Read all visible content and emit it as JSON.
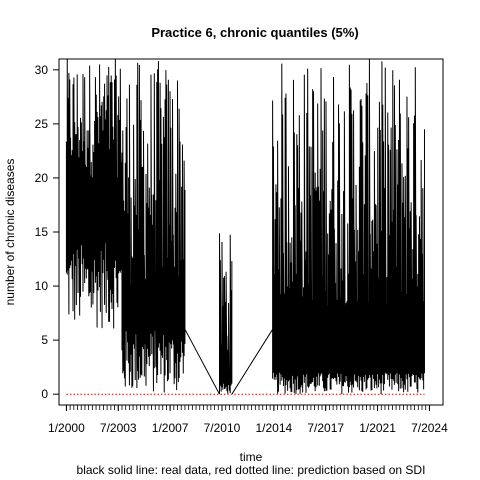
{
  "chart_data": {
    "type": "line",
    "title": "Practice 6, chronic quantiles (5%)",
    "xlabel": "time",
    "ylabel": "number of chronic diseases",
    "caption": "black solid line: real data, red dotted line: prediction based on SDI",
    "x_ticks": [
      "1/2000",
      "7/2003",
      "1/2007",
      "7/2010",
      "1/2014",
      "7/2017",
      "1/2021",
      "7/2024"
    ],
    "y_ticks": [
      0,
      5,
      10,
      15,
      20,
      25,
      30
    ],
    "xlim": [
      "1999-07",
      "2025-06"
    ],
    "ylim": [
      -1,
      31
    ],
    "grid": false,
    "legend": "none",
    "series": [
      {
        "name": "real data",
        "style": "solid",
        "color": "#000000",
        "segments": [
          {
            "start": "2000-01",
            "end": "2003-10",
            "low_range": [
              6,
              14
            ],
            "high_range": [
              20,
              31
            ]
          },
          {
            "start": "2003-10",
            "end": "2008-01",
            "low_range": [
              0,
              6
            ],
            "high_range": [
              10,
              31
            ]
          },
          {
            "start": "2010-05",
            "end": "2011-03",
            "low_range": [
              0,
              1
            ],
            "high_range": [
              2,
              15
            ]
          },
          {
            "start": "2013-12",
            "end": "2024-03",
            "low_range": [
              0,
              2
            ],
            "high_range": [
              8,
              31
            ]
          }
        ],
        "connectors": [
          {
            "from": [
              "2008-01",
              6
            ],
            "to": [
              "2010-05",
              0
            ]
          },
          {
            "from": [
              "2011-03",
              0
            ],
            "to": [
              "2013-12",
              6
            ]
          }
        ]
      },
      {
        "name": "prediction based on SDI",
        "style": "dotted",
        "color": "#cc0000",
        "segments": [
          {
            "start": "2000-01",
            "end": "2024-03",
            "value": 0
          }
        ]
      }
    ]
  }
}
